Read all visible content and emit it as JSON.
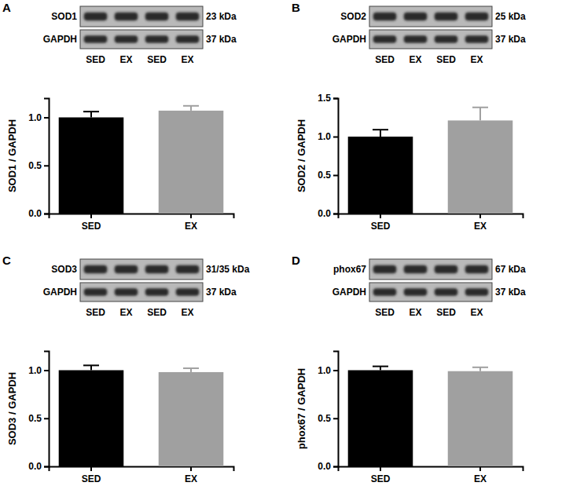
{
  "chart_data": [
    {
      "type": "bar",
      "panel": "A",
      "blot": {
        "rows": [
          {
            "label": "SOD1",
            "size": "23 kDa"
          },
          {
            "label": "GAPDH",
            "size": "37 kDa"
          }
        ],
        "lanes": [
          "SED",
          "EX",
          "SED",
          "EX"
        ]
      },
      "y_label": "SOD1 / GAPDH",
      "categories": [
        "SED",
        "EX"
      ],
      "values": [
        1.0,
        1.07
      ],
      "errors": [
        0.06,
        0.05
      ],
      "colors": [
        "#000000",
        "#a0a0a0"
      ],
      "ylim": [
        0,
        1.2
      ],
      "yticks": [
        {
          "value": 0,
          "label": "0.0"
        },
        {
          "value": 0.5,
          "label": "0.5"
        },
        {
          "value": 1,
          "label": "1.0"
        }
      ]
    },
    {
      "type": "bar",
      "panel": "B",
      "blot": {
        "rows": [
          {
            "label": "SOD2",
            "size": "25 kDa"
          },
          {
            "label": "GAPDH",
            "size": "37 kDa"
          }
        ],
        "lanes": [
          "SED",
          "EX",
          "SED",
          "EX"
        ]
      },
      "y_label": "SOD2 / GAPDH",
      "categories": [
        "SED",
        "EX"
      ],
      "values": [
        1.0,
        1.21
      ],
      "errors": [
        0.09,
        0.17
      ],
      "colors": [
        "#000000",
        "#a0a0a0"
      ],
      "ylim": [
        0,
        1.5
      ],
      "yticks": [
        {
          "value": 0,
          "label": "0.0"
        },
        {
          "value": 0.5,
          "label": "0.5"
        },
        {
          "value": 1,
          "label": "1.0"
        },
        {
          "value": 1.5,
          "label": "1.5"
        }
      ]
    },
    {
      "type": "bar",
      "panel": "C",
      "blot": {
        "rows": [
          {
            "label": "SOD3",
            "size": "31/35 kDa"
          },
          {
            "label": "GAPDH",
            "size": "37 kDa"
          }
        ],
        "lanes": [
          "SED",
          "EX",
          "SED",
          "EX"
        ]
      },
      "y_label": "SOD3 / GAPDH",
      "categories": [
        "SED",
        "EX"
      ],
      "values": [
        1.0,
        0.98
      ],
      "errors": [
        0.05,
        0.04
      ],
      "colors": [
        "#000000",
        "#a0a0a0"
      ],
      "ylim": [
        0,
        1.2
      ],
      "yticks": [
        {
          "value": 0,
          "label": "0.0"
        },
        {
          "value": 0.5,
          "label": "0.5"
        },
        {
          "value": 1,
          "label": "1.0"
        }
      ]
    },
    {
      "type": "bar",
      "panel": "D",
      "blot": {
        "rows": [
          {
            "label": "phox67",
            "size": "67 kDa"
          },
          {
            "label": "GAPDH",
            "size": "37 kDa"
          }
        ],
        "lanes": [
          "SED",
          "EX",
          "SED",
          "EX"
        ]
      },
      "y_label": "phox67 / GAPDH",
      "categories": [
        "SED",
        "EX"
      ],
      "values": [
        1.0,
        0.99
      ],
      "errors": [
        0.04,
        0.04
      ],
      "colors": [
        "#000000",
        "#a0a0a0"
      ],
      "ylim": [
        0,
        1.2
      ],
      "yticks": [
        {
          "value": 0,
          "label": "0.0"
        },
        {
          "value": 0.5,
          "label": "0.5"
        },
        {
          "value": 1,
          "label": "1.0"
        }
      ]
    }
  ]
}
